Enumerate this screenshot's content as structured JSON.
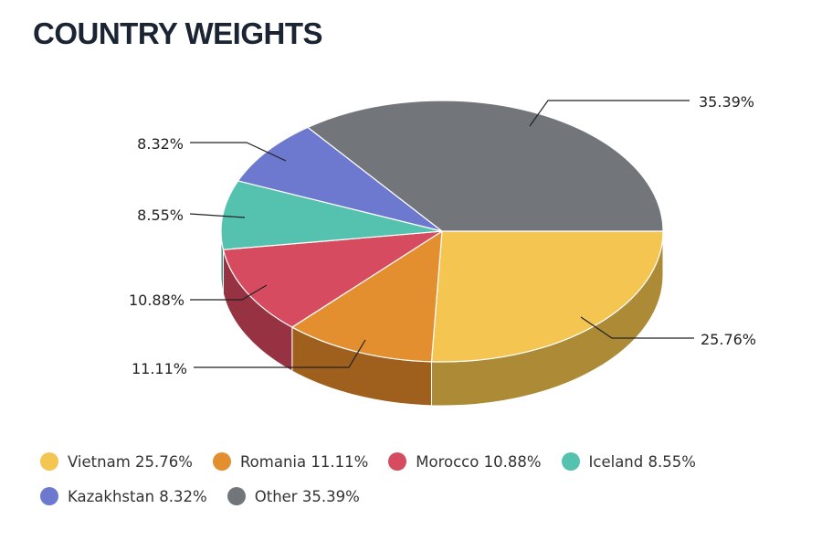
{
  "chart_data": {
    "type": "pie",
    "title": "COUNTRY WEIGHTS",
    "style": "3d",
    "slices": [
      {
        "name": "Vietnam",
        "value": 25.76,
        "label": "25.76%",
        "legend": "Vietnam 25.76%",
        "color": "#f4c550",
        "side": "#ad8b36"
      },
      {
        "name": "Romania",
        "value": 11.11,
        "label": "11.11%",
        "legend": "Romania 11.11%",
        "color": "#e38f2f",
        "side": "#9f601e"
      },
      {
        "name": "Morocco",
        "value": 10.88,
        "label": "10.88%",
        "legend": "Morocco 10.88%",
        "color": "#d64b5f",
        "side": "#963242"
      },
      {
        "name": "Iceland",
        "value": 8.55,
        "label": "8.55%",
        "legend": "Iceland 8.55%",
        "color": "#55c2b0",
        "side": "#3b877b"
      },
      {
        "name": "Kazakhstan",
        "value": 8.32,
        "label": "8.32%",
        "legend": "Kazakhstan 8.32%",
        "color": "#6d79cf",
        "side": "#4c5591"
      },
      {
        "name": "Other",
        "value": 35.39,
        "label": "35.39%",
        "legend": "Other 35.39%",
        "color": "#727579",
        "side": "#505255"
      }
    ],
    "legend_position": "bottom"
  }
}
